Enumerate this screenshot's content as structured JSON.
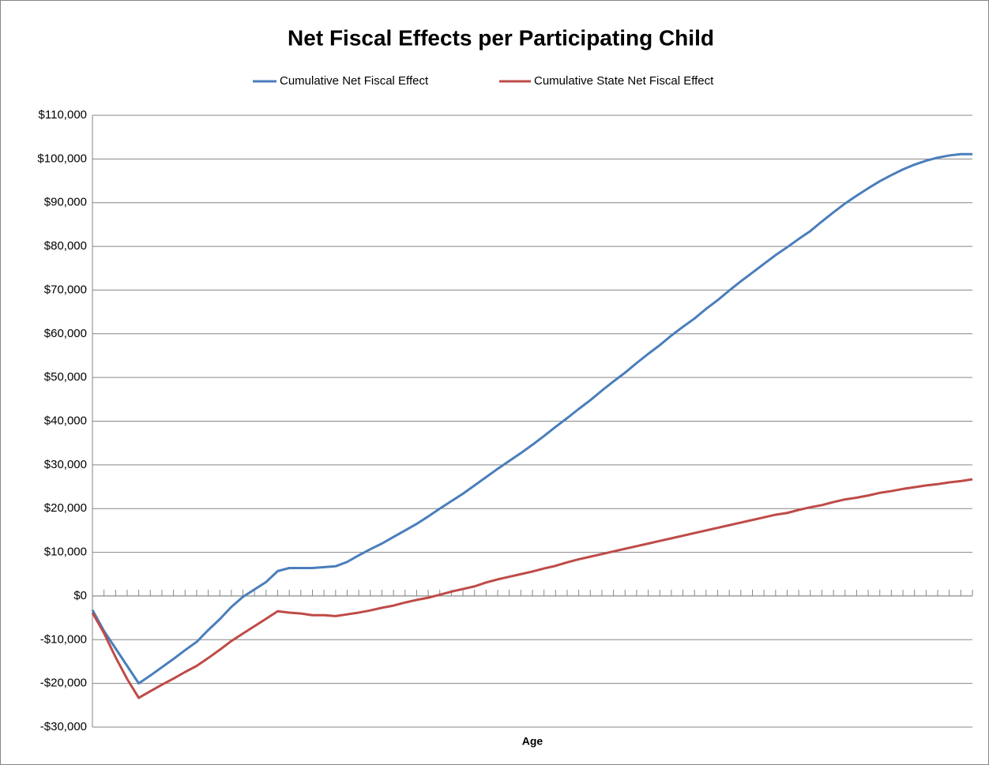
{
  "chart_data": {
    "type": "line",
    "title": "Net Fiscal Effects per Participating Child",
    "x_label": "Age",
    "categories": [
      null,
      null,
      null,
      null,
      null,
      null,
      null,
      null,
      null,
      null,
      null,
      null,
      null,
      null,
      null,
      null,
      null,
      null,
      null,
      null,
      null,
      null,
      null,
      null,
      null,
      null,
      null,
      null,
      null,
      null,
      null,
      null,
      null,
      null,
      null,
      null,
      null,
      null,
      null,
      null,
      null,
      null,
      null,
      null,
      null,
      null,
      null,
      null,
      null,
      null,
      null,
      null,
      null,
      null,
      null,
      null,
      null,
      null,
      null,
      null,
      null,
      null,
      null,
      null,
      null,
      null,
      null,
      null,
      null,
      null,
      null,
      null,
      null,
      null,
      null,
      null,
      null
    ],
    "series": [
      {
        "name": "Cumulative Net Fiscal Effect",
        "color": "#4a7ebb",
        "values": [
          -3200,
          -8000,
          -12000,
          -16000,
          -20000,
          -18200,
          -16300,
          -14400,
          -12400,
          -10500,
          -7800,
          -5300,
          -2500,
          -200,
          1500,
          3200,
          5700,
          6400,
          6400,
          6400,
          6600,
          6800,
          7800,
          9300,
          10700,
          12000,
          13500,
          15000,
          16500,
          18200,
          20000,
          21700,
          23400,
          25300,
          27200,
          29100,
          30900,
          32700,
          34600,
          36600,
          38700,
          40700,
          42800,
          44800,
          47000,
          49100,
          51100,
          53300,
          55400,
          57400,
          59600,
          61600,
          63500,
          65700,
          67700,
          69900,
          72000,
          74000,
          76000,
          78000,
          79800,
          81700,
          83500,
          85700,
          87800,
          89800,
          91600,
          93300,
          94900,
          96300,
          97600,
          98700,
          99600,
          100300,
          100800,
          101100,
          101100
        ]
      },
      {
        "name": "Cumulative State Net Fiscal Effect",
        "color": "#be4b48",
        "values": [
          -3800,
          -8500,
          -14000,
          -19000,
          -23300,
          -21800,
          -20300,
          -18900,
          -17400,
          -16000,
          -14200,
          -12300,
          -10300,
          -8600,
          -6900,
          -5200,
          -3500,
          -3800,
          -4000,
          -4400,
          -4400,
          -4600,
          -4200,
          -3800,
          -3300,
          -2700,
          -2200,
          -1500,
          -900,
          -400,
          300,
          1000,
          1600,
          2200,
          3100,
          3800,
          4400,
          5000,
          5600,
          6300,
          6900,
          7700,
          8400,
          9000,
          9600,
          10200,
          10800,
          11400,
          12000,
          12600,
          13200,
          13800,
          14400,
          15000,
          15600,
          16200,
          16800,
          17400,
          18000,
          18600,
          19000,
          19700,
          20300,
          20800,
          21500,
          22100,
          22500,
          23000,
          23600,
          24000,
          24500,
          24900,
          25300,
          25600,
          26000,
          26300,
          26700
        ]
      }
    ],
    "ylim": [
      -30000,
      110000
    ],
    "yticks": [
      {
        "value": -30000,
        "label": "-$30,000"
      },
      {
        "value": -20000,
        "label": "-$20,000"
      },
      {
        "value": -10000,
        "label": "-$10,000"
      },
      {
        "value": 0,
        "label": "$0"
      },
      {
        "value": 10000,
        "label": "$10,000"
      },
      {
        "value": 20000,
        "label": "$20,000"
      },
      {
        "value": 30000,
        "label": "$30,000"
      },
      {
        "value": 40000,
        "label": "$40,000"
      },
      {
        "value": 50000,
        "label": "$50,000"
      },
      {
        "value": 60000,
        "label": "$60,000"
      },
      {
        "value": 70000,
        "label": "$70,000"
      },
      {
        "value": 80000,
        "label": "$80,000"
      },
      {
        "value": 90000,
        "label": "$90,000"
      },
      {
        "value": 100000,
        "label": "$100,000"
      },
      {
        "value": 110000,
        "label": "$110,000"
      }
    ],
    "grid": true,
    "legend": "top"
  }
}
